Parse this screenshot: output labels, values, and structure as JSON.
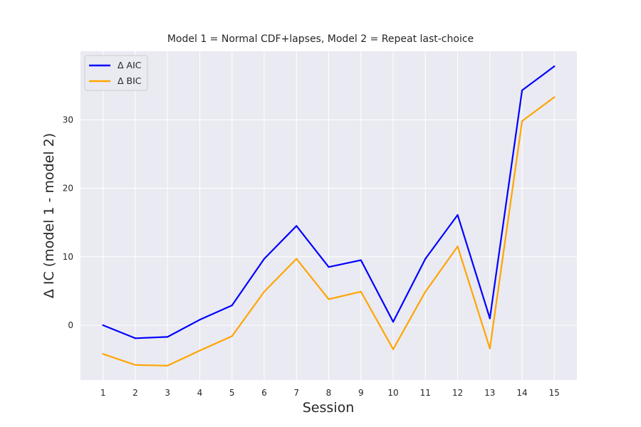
{
  "chart_data": {
    "type": "line",
    "title": "Model 1 = Normal CDF+lapses, Model 2 = Repeat last-choice",
    "xlabel": "Session",
    "ylabel": "Δ IC (model 1 - model 2)",
    "x": [
      1,
      2,
      3,
      4,
      5,
      6,
      7,
      8,
      9,
      10,
      11,
      12,
      13,
      14,
      15
    ],
    "xlim": [
      0.3,
      15.7
    ],
    "ylim": [
      -8,
      40
    ],
    "yticks": [
      0,
      10,
      20,
      30
    ],
    "grid": true,
    "legend_position": "top-left",
    "series": [
      {
        "name": "Δ AIC",
        "color": "#0000ff",
        "values": [
          0.0,
          -1.9,
          -1.7,
          0.8,
          2.9,
          9.7,
          14.5,
          8.5,
          9.5,
          0.5,
          9.7,
          16.1,
          1.0,
          34.3,
          37.8
        ]
      },
      {
        "name": "Δ BIC",
        "color": "#ffa500",
        "values": [
          -4.2,
          -5.8,
          -5.9,
          -3.7,
          -1.6,
          4.9,
          9.7,
          3.8,
          4.9,
          -3.5,
          4.9,
          11.5,
          -3.4,
          29.8,
          33.3
        ]
      }
    ]
  }
}
